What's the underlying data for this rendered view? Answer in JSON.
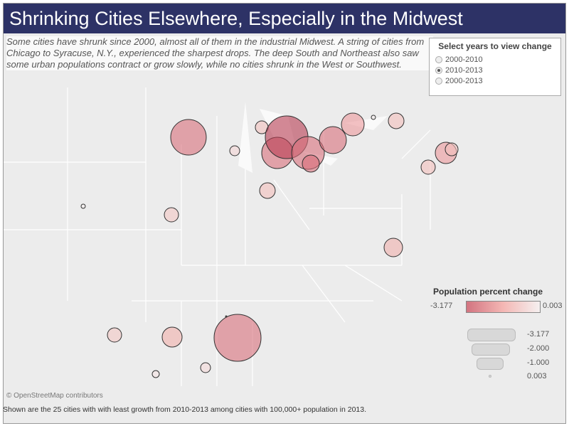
{
  "title": "Shrinking Cities Elsewhere, Especially in the Midwest",
  "subtitle": "Some cities have shrunk since 2000, almost all of them in the industrial Midwest. A string of cities from Chicago to Syracuse, N.Y., experienced the sharpest drops. The deep South and Northeast also saw some urban populations contract or grow slowly, while no cities shrunk in the West or Southwest.",
  "year_selector": {
    "label": "Select years to view change",
    "options": [
      "2000-2010",
      "2010-2013",
      "2000-2013"
    ],
    "selected": "2010-2013"
  },
  "legend": {
    "title": "Population percent change",
    "min": "-3.177",
    "max": "0.003",
    "sizes": [
      "-3.177",
      "-2.000",
      "-1.000",
      "0.003"
    ]
  },
  "colors": {
    "title_bg": "#2d3266",
    "low": "#d27480",
    "high": "#f5f0f0"
  },
  "credit": "© OpenStreetMap contributors",
  "footer": "Shown are the 25 cities with with least growth from 2010-2013 among cities with 100,000+ population in 2013."
}
